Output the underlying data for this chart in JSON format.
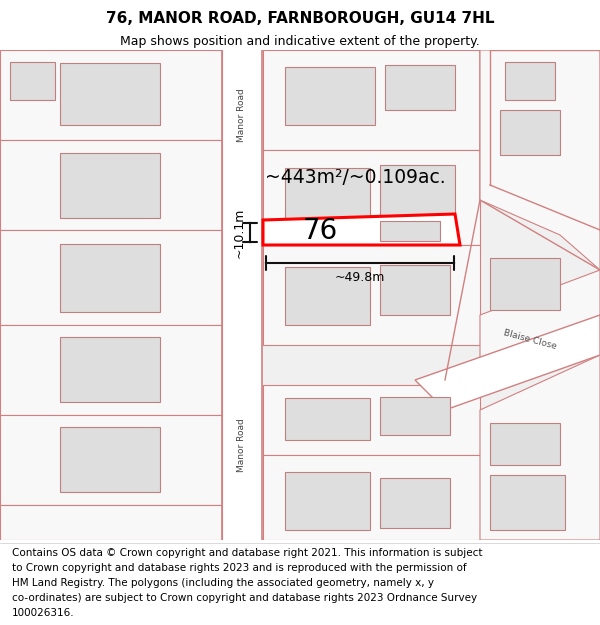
{
  "title": "76, MANOR ROAD, FARNBOROUGH, GU14 7HL",
  "subtitle": "Map shows position and indicative extent of the property.",
  "footer_lines": [
    "Contains OS data © Crown copyright and database right 2021. This information is subject",
    "to Crown copyright and database rights 2023 and is reproduced with the permission of",
    "HM Land Registry. The polygons (including the associated geometry, namely x, y",
    "co-ordinates) are subject to Crown copyright and database rights 2023 Ordnance Survey",
    "100026316."
  ],
  "bg_color": "#ffffff",
  "map_bg": "#f0f0f0",
  "road_fill": "#ffffff",
  "road_outline": "#d08080",
  "building_fill": "#dedede",
  "building_outline": "#c08080",
  "plot_fill": "#f8f8f8",
  "plot_outline": "#d08080",
  "highlight_color": "#ff0000",
  "highlight_fill": "#ffffff",
  "road_label": "Manor Road",
  "blaise_close": "Blaise Close",
  "measurement_area": "~443m²/~0.109ac.",
  "measurement_width": "~49.8m",
  "measurement_height": "~10.1m",
  "property_number": "76",
  "title_fontsize": 11,
  "subtitle_fontsize": 9,
  "footer_fontsize": 7.5,
  "label_fontsize": 6.5
}
